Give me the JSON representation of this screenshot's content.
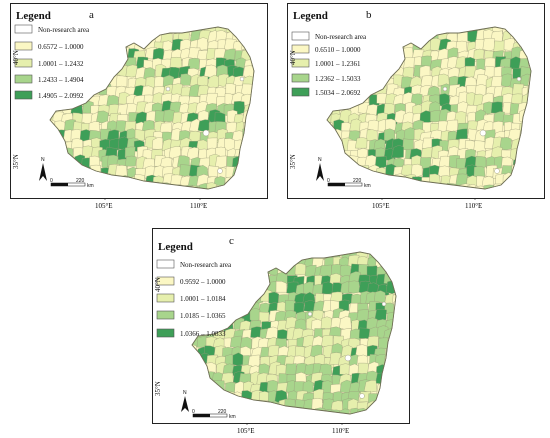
{
  "colors": {
    "class1": "#fbf7c4",
    "class2": "#e6efad",
    "class3": "#a8d58c",
    "class4": "#3e9f58",
    "nonresearch": "#ffffff",
    "boundary": "#8a8a6a"
  },
  "panels": [
    {
      "id": "a",
      "label": "a",
      "legend_title": "Legend",
      "legend_items": [
        {
          "label": "Non-research area",
          "color_key": "nonresearch"
        },
        {
          "label": "0.6572 – 1.0000",
          "color_key": "class1"
        },
        {
          "label": "1.0001 – 1.2432",
          "color_key": "class2"
        },
        {
          "label": "1.2433 – 1.4904",
          "color_key": "class3"
        },
        {
          "label": "1.4905 – 2.0992",
          "color_key": "class4"
        }
      ],
      "lat_labels": [
        "40°N",
        "35°N"
      ],
      "lon_labels": [
        "105°E",
        "110°E"
      ],
      "north_label": "N",
      "scale_labels": [
        "0",
        "220",
        "km"
      ]
    },
    {
      "id": "b",
      "label": "b",
      "legend_title": "Legend",
      "legend_items": [
        {
          "label": "Non-research area",
          "color_key": "nonresearch"
        },
        {
          "label": "0.6510 – 1.0000",
          "color_key": "class1"
        },
        {
          "label": "1.0001 – 1.2361",
          "color_key": "class2"
        },
        {
          "label": "1.2362 – 1.5033",
          "color_key": "class3"
        },
        {
          "label": "1.5034 – 2.0692",
          "color_key": "class4"
        }
      ],
      "lat_labels": [
        "40°N",
        "35°N"
      ],
      "lon_labels": [
        "105°E",
        "110°E"
      ],
      "north_label": "N",
      "scale_labels": [
        "0",
        "220",
        "km"
      ]
    },
    {
      "id": "c",
      "label": "c",
      "legend_title": "Legend",
      "legend_items": [
        {
          "label": "Non-research area",
          "color_key": "nonresearch"
        },
        {
          "label": "0.9592 – 1.0000",
          "color_key": "class1"
        },
        {
          "label": "1.0001 – 1.0184",
          "color_key": "class2"
        },
        {
          "label": "1.0185 – 1.0365",
          "color_key": "class3"
        },
        {
          "label": "1.0366 – 1.0833",
          "color_key": "class4"
        }
      ],
      "lat_labels": [
        "40°N",
        "35°N"
      ],
      "lon_labels": [
        "105°E",
        "110°E"
      ],
      "north_label": "N",
      "scale_labels": [
        "0",
        "220",
        "km"
      ]
    }
  ]
}
